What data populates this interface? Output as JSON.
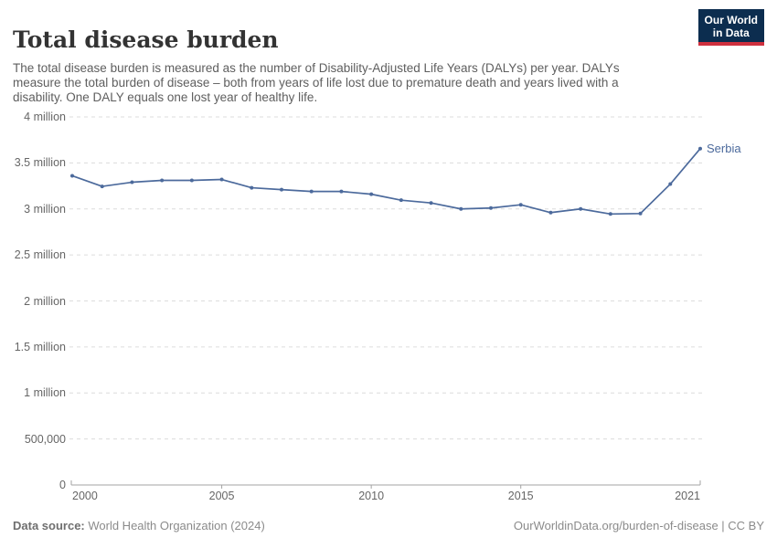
{
  "header": {
    "title": "Total disease burden",
    "subtitle": "The total disease burden is measured as the number of Disability-Adjusted Life Years (DALYs) per year. DALYs measure the total burden of disease – both from years of life lost due to premature death and years lived with a disability. One DALY equals one lost year of healthy life.",
    "logo": {
      "line1": "Our World",
      "line2": "in Data",
      "bg_color": "#0c2d4f",
      "accent_color": "#cf303e"
    }
  },
  "chart_data": {
    "type": "line",
    "title": "Total disease burden",
    "entity_label": "Serbia",
    "x": [
      2000,
      2001,
      2002,
      2003,
      2004,
      2005,
      2006,
      2007,
      2008,
      2009,
      2010,
      2011,
      2012,
      2013,
      2014,
      2015,
      2016,
      2017,
      2018,
      2019,
      2020,
      2021
    ],
    "series": [
      {
        "name": "Serbia",
        "color": "#4c6a9c",
        "values": [
          3360000,
          3245000,
          3290000,
          3310000,
          3310000,
          3320000,
          3230000,
          3210000,
          3190000,
          3190000,
          3160000,
          3095000,
          3065000,
          3000000,
          3010000,
          3045000,
          2960000,
          3000000,
          2945000,
          2950000,
          3270000,
          3655000
        ]
      }
    ],
    "xlabel": "",
    "ylabel": "",
    "xlim": [
      2000,
      2021
    ],
    "ylim": [
      0,
      4000000
    ],
    "xticks": [
      2000,
      2005,
      2010,
      2015,
      2021
    ],
    "yticks": [
      {
        "value": 0,
        "label": "0"
      },
      {
        "value": 500000,
        "label": "500,000"
      },
      {
        "value": 1000000,
        "label": "1 million"
      },
      {
        "value": 1500000,
        "label": "1.5 million"
      },
      {
        "value": 2000000,
        "label": "2 million"
      },
      {
        "value": 2500000,
        "label": "2.5 million"
      },
      {
        "value": 3000000,
        "label": "3 million"
      },
      {
        "value": 3500000,
        "label": "3.5 million"
      },
      {
        "value": 4000000,
        "label": "4 million"
      }
    ],
    "grid": "horizontal-dashed",
    "legend": "end-of-line-label",
    "grid_color": "#dcdcdc",
    "axis_color": "#a3a3a3",
    "tick_label_color": "#666666"
  },
  "footer": {
    "datasource_label": "Data source:",
    "datasource_value": " World Health Organization (2024)",
    "link": "OurWorldinData.org/burden-of-disease | CC BY"
  }
}
